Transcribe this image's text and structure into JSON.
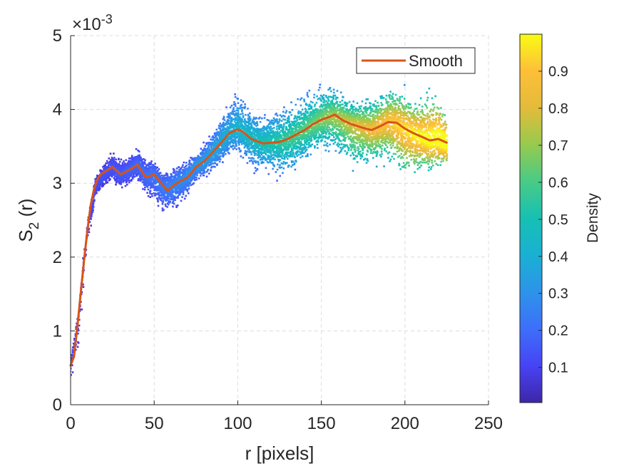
{
  "chart_data": {
    "type": "scatter",
    "xlabel": "r [pixels]",
    "ylabel_main": "S",
    "ylabel_sub": "2",
    "ylabel_suffix": " (r)",
    "exponent_base": "×10",
    "exponent_power": "-3",
    "xlim": [
      0,
      250
    ],
    "ylim": [
      0,
      5
    ],
    "x_ticks": [
      0,
      50,
      100,
      150,
      200,
      250
    ],
    "y_ticks": [
      0,
      1,
      2,
      3,
      4,
      5
    ],
    "grid": true,
    "legend": {
      "position": "top-right",
      "entries": [
        "Smooth"
      ]
    },
    "colorbar": {
      "label": "Density",
      "range": [
        0.005,
        1.0
      ],
      "ticks": [
        0.1,
        0.2,
        0.3,
        0.4,
        0.5,
        0.6,
        0.7,
        0.8,
        0.9
      ]
    },
    "series": [
      {
        "name": "Smooth",
        "color": "#d95319",
        "x": [
          0,
          2,
          4,
          6,
          8,
          10,
          12,
          14,
          16,
          18,
          20,
          25,
          30,
          35,
          40,
          45,
          50,
          55,
          58,
          62,
          65,
          70,
          75,
          80,
          85,
          90,
          95,
          100,
          103,
          108,
          115,
          120,
          125,
          130,
          135,
          140,
          145,
          150,
          155,
          158,
          163,
          168,
          175,
          180,
          185,
          190,
          195,
          200,
          205,
          210,
          215,
          220,
          225
        ],
        "y": [
          0.53,
          0.65,
          1.05,
          1.5,
          1.95,
          2.35,
          2.7,
          2.92,
          3.05,
          3.12,
          3.15,
          3.22,
          3.12,
          3.18,
          3.25,
          3.08,
          3.12,
          2.98,
          2.9,
          2.98,
          3.02,
          3.08,
          3.22,
          3.3,
          3.42,
          3.55,
          3.68,
          3.73,
          3.7,
          3.6,
          3.54,
          3.55,
          3.56,
          3.6,
          3.66,
          3.72,
          3.8,
          3.86,
          3.9,
          3.93,
          3.85,
          3.8,
          3.75,
          3.72,
          3.77,
          3.83,
          3.82,
          3.74,
          3.68,
          3.63,
          3.58,
          3.6,
          3.55
        ]
      }
    ],
    "scatter_cloud": {
      "description_units": "S2 x 1e-3",
      "x": [
        0,
        5,
        10,
        15,
        20,
        25,
        30,
        35,
        40,
        45,
        50,
        55,
        60,
        65,
        70,
        75,
        80,
        85,
        90,
        95,
        100,
        105,
        110,
        115,
        120,
        125,
        130,
        135,
        140,
        145,
        150,
        155,
        160,
        165,
        170,
        175,
        180,
        185,
        190,
        195,
        200,
        205,
        210,
        215,
        220,
        225
      ],
      "center": [
        0.53,
        1.2,
        2.35,
        2.95,
        3.12,
        3.22,
        3.12,
        3.18,
        3.25,
        3.1,
        3.12,
        2.95,
        2.95,
        3.02,
        3.1,
        3.24,
        3.3,
        3.42,
        3.56,
        3.68,
        3.73,
        3.66,
        3.58,
        3.54,
        3.55,
        3.56,
        3.6,
        3.66,
        3.72,
        3.8,
        3.86,
        3.9,
        3.9,
        3.84,
        3.8,
        3.76,
        3.72,
        3.77,
        3.83,
        3.8,
        3.74,
        3.68,
        3.62,
        3.58,
        3.6,
        3.55
      ],
      "lower": [
        0.0,
        0.7,
        2.0,
        2.75,
        2.9,
        2.95,
        2.85,
        2.9,
        2.95,
        2.75,
        2.62,
        2.48,
        2.5,
        2.62,
        2.75,
        2.95,
        3.0,
        3.05,
        3.15,
        3.25,
        3.3,
        3.15,
        3.05,
        3.05,
        3.0,
        2.95,
        2.92,
        3.05,
        3.15,
        3.2,
        3.28,
        3.3,
        3.2,
        3.1,
        2.9,
        3.05,
        3.05,
        3.1,
        3.1,
        2.92,
        2.78,
        2.85,
        3.0,
        3.02,
        3.05,
        3.08
      ],
      "upper": [
        0.55,
        1.55,
        2.55,
        3.15,
        3.35,
        3.48,
        3.4,
        3.42,
        3.58,
        3.42,
        3.38,
        3.22,
        3.3,
        3.35,
        3.38,
        3.48,
        3.62,
        3.78,
        4.05,
        4.25,
        4.45,
        4.28,
        4.12,
        4.05,
        4.1,
        4.15,
        4.2,
        4.3,
        4.35,
        4.38,
        4.42,
        4.45,
        4.38,
        4.28,
        4.22,
        4.28,
        4.3,
        4.38,
        4.45,
        4.48,
        4.4,
        4.3,
        4.35,
        4.45,
        4.42,
        4.05
      ]
    }
  }
}
